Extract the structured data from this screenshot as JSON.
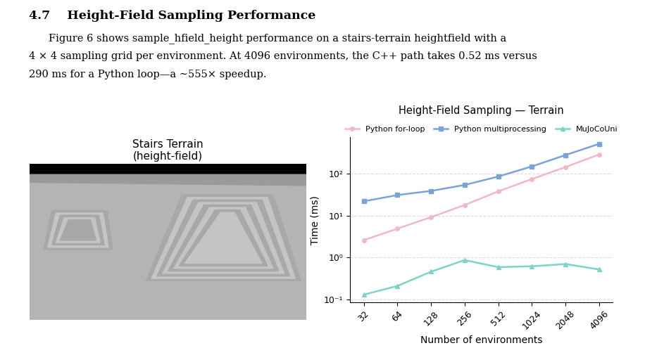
{
  "header": {
    "number": "4.7",
    "title": "Height-Field Sampling Performance"
  },
  "body": {
    "lines": [
      "Figure 6 shows sample_hfield_height performance on a stairs-terrain heightfield with a",
      "4 × 4 sampling grid per environment. At 4096 environments, the C++ path takes 0.52 ms versus",
      "290 ms for a Python loop—a ∼555× speedup."
    ]
  },
  "image_panel": {
    "title": "Stairs Terrain\n(height-field)"
  },
  "chart_data": {
    "type": "line",
    "title": "Height-Field Sampling — Terrain",
    "x_label": "Number of environments",
    "y_label": "Time (ms)",
    "categories": [
      "32",
      "64",
      "128",
      "256",
      "512",
      "1024",
      "2048",
      "4096"
    ],
    "series": [
      {
        "name": "Python for-loop",
        "color": "#f2b8c6",
        "marker": "o",
        "values": [
          2.6,
          4.9,
          9.2,
          18,
          38,
          75,
          145,
          290
        ]
      },
      {
        "name": "Python multiprocessing",
        "color": "#7ba3d6",
        "marker": "s",
        "values": [
          22,
          31,
          39,
          54,
          86,
          150,
          280,
          520
        ]
      },
      {
        "name": "MuJoCoUni",
        "color": "#7fd3c6",
        "marker": "^",
        "values": [
          0.13,
          0.21,
          0.46,
          0.87,
          0.59,
          0.62,
          0.7,
          0.52
        ]
      }
    ],
    "log": "y",
    "ylim": [
      0.085,
      750
    ],
    "yticks": [
      {
        "value": 0.1,
        "label": "10⁻¹"
      },
      {
        "value": 1,
        "label": "10⁰"
      },
      {
        "value": 10,
        "label": "10¹"
      },
      {
        "value": 100,
        "label": "10²"
      }
    ],
    "grid": true,
    "legend": "upper center"
  }
}
